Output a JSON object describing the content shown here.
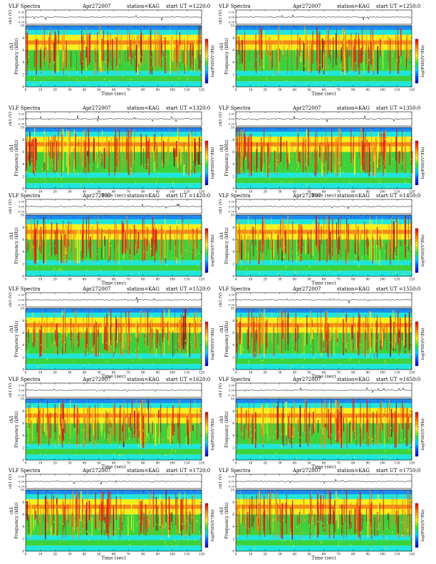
{
  "chart_data": [
    {
      "type": "heatmap",
      "title_left": "VLF Spectra",
      "date": "Apr272007",
      "station": "station=KAG",
      "start_ut": "start  UT  =1220:0",
      "ylabel_top": "ch1 (V)",
      "ylabel_spec": "Frequency  (kHz)",
      "ylabel_spec_ch": "ch1",
      "colorbar_label": "log(PSD)(V²/Hz)",
      "xlabel": "Time (sec)",
      "xticks": [
        "0",
        "10",
        "20",
        "30",
        "40",
        "50",
        "60",
        "70",
        "80",
        "90",
        "100",
        "110",
        "120"
      ],
      "yticks_spec": [
        "0",
        "2",
        "4",
        "6",
        "8",
        "10"
      ],
      "yticks_top": [
        "0.30",
        "0.00",
        "-0.30"
      ],
      "xlim": [
        0,
        120
      ],
      "ylim": [
        0,
        10
      ]
    },
    {
      "type": "heatmap",
      "title_left": "VLF Spectra",
      "date": "Apr272007",
      "station": "station=KAG",
      "start_ut": "start  UT  =1250:0",
      "ylabel_top": "ch1 (V)",
      "ylabel_spec": "Frequency  (kHz)",
      "ylabel_spec_ch": "ch1",
      "colorbar_label": "log(PSD)(V²/Hz)",
      "xlabel": "Time (sec)",
      "xticks": [
        "0",
        "10",
        "20",
        "30",
        "40",
        "50",
        "60",
        "70",
        "80",
        "90",
        "100",
        "110",
        "120"
      ],
      "yticks_spec": [
        "0",
        "2",
        "4",
        "6",
        "8",
        "10"
      ],
      "yticks_top": [
        "0.30",
        "0.00",
        "-0.30"
      ],
      "xlim": [
        0,
        120
      ],
      "ylim": [
        0,
        10
      ]
    },
    {
      "type": "heatmap",
      "title_left": "VLF Spectra",
      "date": "Apr272007",
      "station": "station=KAG",
      "start_ut": "start  UT  =1320:0",
      "ylabel_top": "ch1 (V)",
      "ylabel_spec": "Frequency  (kHz)",
      "ylabel_spec_ch": "ch1",
      "colorbar_label": "log(PSD)(V²/Hz)",
      "xlabel": "Time (sec)",
      "xticks": [
        "0",
        "10",
        "20",
        "30",
        "40",
        "50",
        "60",
        "70",
        "80",
        "90",
        "100",
        "110",
        "120"
      ],
      "yticks_spec": [
        "0",
        "2",
        "4",
        "6",
        "8",
        "10"
      ],
      "yticks_top": [
        "0.30",
        "0.00",
        "-0.30"
      ],
      "xlim": [
        0,
        120
      ],
      "ylim": [
        0,
        10
      ]
    },
    {
      "type": "heatmap",
      "title_left": "VLF Spectra",
      "date": "Apr272007",
      "station": "station=KAG",
      "start_ut": "start  UT  =1350:0",
      "ylabel_top": "ch1 (V)",
      "ylabel_spec": "Frequency  (kHz)",
      "ylabel_spec_ch": "ch1",
      "colorbar_label": "log(PSD)(V²/Hz)",
      "xlabel": "Time (sec)",
      "xticks": [
        "0",
        "10",
        "20",
        "30",
        "40",
        "50",
        "60",
        "70",
        "80",
        "90",
        "100",
        "110",
        "120"
      ],
      "yticks_spec": [
        "0",
        "2",
        "4",
        "6",
        "8",
        "10"
      ],
      "yticks_top": [
        "0.30",
        "0.00",
        "-0.30"
      ],
      "xlim": [
        0,
        120
      ],
      "ylim": [
        0,
        10
      ]
    },
    {
      "type": "heatmap",
      "title_left": "VLF Spectra",
      "date": "Apr272007",
      "station": "station=KAG",
      "start_ut": "start  UT  =1420:0",
      "ylabel_top": "ch1 (V)",
      "ylabel_spec": "Frequency  (kHz)",
      "ylabel_spec_ch": "ch1",
      "colorbar_label": "log(PSD)(V²/Hz)",
      "xlabel": "Time (sec)",
      "xticks": [
        "0",
        "10",
        "20",
        "30",
        "40",
        "50",
        "60",
        "70",
        "80",
        "90",
        "100",
        "110",
        "120"
      ],
      "yticks_spec": [
        "0",
        "2",
        "4",
        "6",
        "8",
        "10"
      ],
      "yticks_top": [
        "0.30",
        "0.00",
        "-0.30"
      ],
      "xlim": [
        0,
        120
      ],
      "ylim": [
        0,
        10
      ]
    },
    {
      "type": "heatmap",
      "title_left": "VLF Spectra",
      "date": "Apr272007",
      "station": "station=KAG",
      "start_ut": "start  UT  =1450:0",
      "ylabel_top": "ch1 (V)",
      "ylabel_spec": "Frequency  (kHz)",
      "ylabel_spec_ch": "ch1",
      "colorbar_label": "log(PSD)(V²/Hz)",
      "xlabel": "Time (sec)",
      "xticks": [
        "0",
        "10",
        "20",
        "30",
        "40",
        "50",
        "60",
        "70",
        "80",
        "90",
        "100",
        "110",
        "120"
      ],
      "yticks_spec": [
        "0",
        "2",
        "4",
        "6",
        "8",
        "10"
      ],
      "yticks_top": [
        "0.30",
        "0.00",
        "-0.30"
      ],
      "xlim": [
        0,
        120
      ],
      "ylim": [
        0,
        10
      ]
    },
    {
      "type": "heatmap",
      "title_left": "VLF Spectra",
      "date": "Apr272007",
      "station": "station=KAG",
      "start_ut": "start  UT  =1520:0",
      "ylabel_top": "ch1 (V)",
      "ylabel_spec": "Frequency  (kHz)",
      "ylabel_spec_ch": "ch1",
      "colorbar_label": "log(PSD)(V²/Hz)",
      "xlabel": "Time (sec)",
      "xticks": [
        "0",
        "10",
        "20",
        "30",
        "40",
        "50",
        "60",
        "70",
        "80",
        "90",
        "100",
        "110",
        "120"
      ],
      "yticks_spec": [
        "0",
        "2",
        "4",
        "6",
        "8",
        "10"
      ],
      "yticks_top": [
        "0.30",
        "0.00",
        "-0.30"
      ],
      "xlim": [
        0,
        120
      ],
      "ylim": [
        0,
        10
      ]
    },
    {
      "type": "heatmap",
      "title_left": "VLF Spectra",
      "date": "Apr272007",
      "station": "station=KAG",
      "start_ut": "start  UT  =1550:0",
      "ylabel_top": "ch1 (V)",
      "ylabel_spec": "Frequency  (kHz)",
      "ylabel_spec_ch": "ch1",
      "colorbar_label": "log(PSD)(V²/Hz)",
      "xlabel": "Time (sec)",
      "xticks": [
        "0",
        "10",
        "20",
        "30",
        "40",
        "50",
        "60",
        "70",
        "80",
        "90",
        "100",
        "110",
        "120"
      ],
      "yticks_spec": [
        "0",
        "2",
        "4",
        "6",
        "8",
        "10"
      ],
      "yticks_top": [
        "0.30",
        "0.00",
        "-0.30"
      ],
      "xlim": [
        0,
        120
      ],
      "ylim": [
        0,
        10
      ]
    },
    {
      "type": "heatmap",
      "title_left": "VLF Spectra",
      "date": "Apr272007",
      "station": "station=KAG",
      "start_ut": "start  UT  =1620:0",
      "ylabel_top": "ch1 (V)",
      "ylabel_spec": "Frequency  (kHz)",
      "ylabel_spec_ch": "ch1",
      "colorbar_label": "log(PSD)(V²/Hz)",
      "xlabel": "Time (sec)",
      "xticks": [
        "0",
        "10",
        "20",
        "30",
        "40",
        "50",
        "60",
        "70",
        "80",
        "90",
        "100",
        "110",
        "120"
      ],
      "yticks_spec": [
        "0",
        "2",
        "4",
        "6",
        "8",
        "10"
      ],
      "yticks_top": [
        "0.30",
        "0.00",
        "-0.30"
      ],
      "xlim": [
        0,
        120
      ],
      "ylim": [
        0,
        10
      ]
    },
    {
      "type": "heatmap",
      "title_left": "VLF Spectra",
      "date": "Apr272007",
      "station": "station=KAG",
      "start_ut": "start  UT  =1650:0",
      "ylabel_top": "ch1 (V)",
      "ylabel_spec": "Frequency  (kHz)",
      "ylabel_spec_ch": "ch1",
      "colorbar_label": "log(PSD)(V²/Hz)",
      "xlabel": "Time (sec)",
      "xticks": [
        "0",
        "10",
        "20",
        "30",
        "40",
        "50",
        "60",
        "70",
        "80",
        "90",
        "100",
        "110",
        "120"
      ],
      "yticks_spec": [
        "0",
        "2",
        "4",
        "6",
        "8",
        "10"
      ],
      "yticks_top": [
        "0.30",
        "0.00",
        "-0.30"
      ],
      "xlim": [
        0,
        120
      ],
      "ylim": [
        0,
        10
      ]
    },
    {
      "type": "heatmap",
      "title_left": "VLF Spectra",
      "date": "Apr272007",
      "station": "station=KAG",
      "start_ut": "start  UT  =1720:0",
      "ylabel_top": "ch1 (V)",
      "ylabel_spec": "Frequency  (kHz)",
      "ylabel_spec_ch": "ch1",
      "colorbar_label": "log(PSD)(V²/Hz)",
      "xlabel": "Time (sec)",
      "xticks": [
        "0",
        "10",
        "20",
        "30",
        "40",
        "50",
        "60",
        "70",
        "80",
        "90",
        "100",
        "110",
        "120"
      ],
      "yticks_spec": [
        "0",
        "2",
        "4",
        "6",
        "8",
        "10"
      ],
      "yticks_top": [
        "0.30",
        "0.00",
        "-0.30"
      ],
      "xlim": [
        0,
        120
      ],
      "ylim": [
        0,
        10
      ]
    },
    {
      "type": "heatmap",
      "title_left": "VLF Spectra",
      "date": "Apr272007",
      "station": "station=KAG",
      "start_ut": "start  UT  =1750:0",
      "ylabel_top": "ch1 (V)",
      "ylabel_spec": "Frequency  (kHz)",
      "ylabel_spec_ch": "ch1",
      "colorbar_label": "log(PSD)(V²/Hz)",
      "xlabel": "Time (sec)",
      "xticks": [
        "0",
        "10",
        "20",
        "30",
        "40",
        "50",
        "60",
        "70",
        "80",
        "90",
        "100",
        "110",
        "120"
      ],
      "yticks_spec": [
        "0",
        "2",
        "4",
        "6",
        "8",
        "10"
      ],
      "yticks_top": [
        "0.30",
        "0.00",
        "-0.30"
      ],
      "xlim": [
        0,
        120
      ],
      "ylim": [
        0,
        10
      ]
    }
  ],
  "colors": {
    "band_blue_dark": "#0a3cc8",
    "band_blue": "#1e8cf0",
    "cyan": "#1ee6dc",
    "green": "#3cd23c",
    "yellow": "#f5f01e",
    "orange": "#f58c14",
    "red": "#dc1e14",
    "axis": "#000000"
  }
}
